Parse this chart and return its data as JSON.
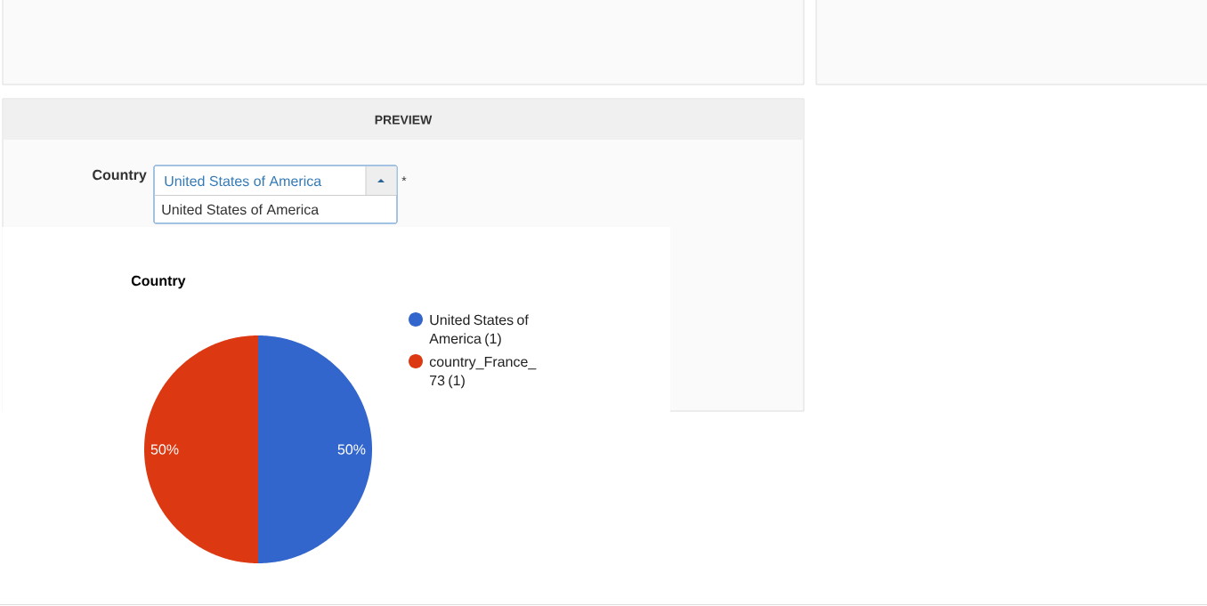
{
  "chart_data": {
    "type": "pie",
    "title": "Country",
    "categories": [
      "United States of America (1)",
      "country_France_73 (1)"
    ],
    "values": [
      50,
      50
    ],
    "colors": [
      "#3366cc",
      "#dc3912"
    ],
    "value_labels": [
      "50%",
      "50%"
    ],
    "legend": "right",
    "annotations": [
      "PREVIEW",
      "Country",
      "United States of America",
      "United States of America",
      "*"
    ]
  }
}
